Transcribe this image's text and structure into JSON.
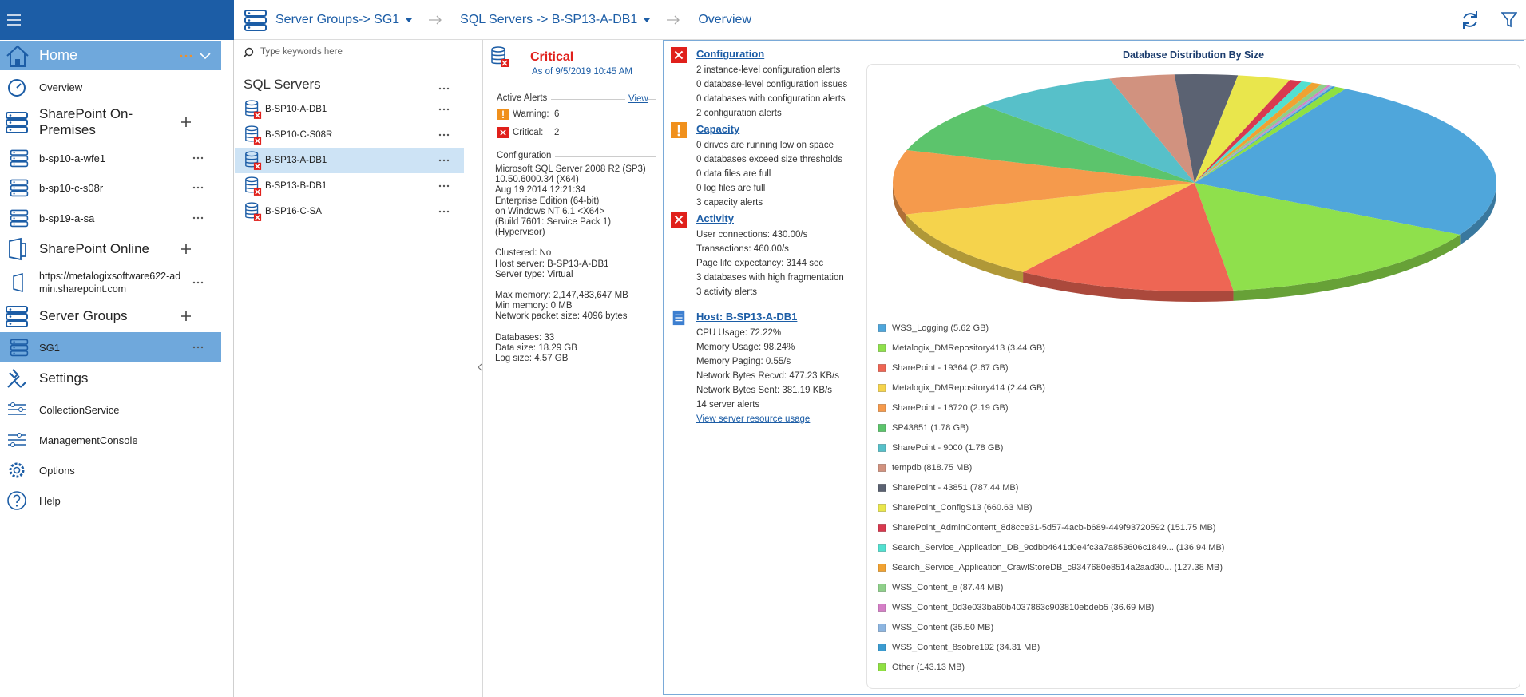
{
  "top_bar": {
    "breadcrumb": [
      "Server Groups-> SG1",
      "SQL Servers -> B-SP13-A-DB1",
      "Overview"
    ]
  },
  "sidebar": {
    "home": "Home",
    "items": [
      "Overview",
      "SharePoint On-Premises",
      "b-sp10-a-wfe1",
      "b-sp10-c-s08r",
      "b-sp19-a-sa",
      "SharePoint Online",
      "https://metalogixsoftware622-admin.sharepoint.com",
      "Server Groups",
      "SG1",
      "Settings",
      "CollectionService",
      "ManagementConsole",
      "Options",
      "Help"
    ]
  },
  "servers": {
    "search_placeholder": "Type keywords here",
    "title": "SQL Servers",
    "items": [
      "B-SP10-A-DB1",
      "B-SP10-C-S08R",
      "B-SP13-A-DB1",
      "B-SP13-B-DB1",
      "B-SP16-C-SA"
    ]
  },
  "status": {
    "state": "Critical",
    "as_of": "As of 9/5/2019 10:45 AM",
    "alerts_title": "Active Alerts",
    "view_link": "View",
    "warning_label": "Warning:",
    "warning_count": 6,
    "critical_label": "Critical:",
    "critical_count": 2,
    "configuration_title": "Configuration",
    "configuration_groups": [
      [
        "Microsoft SQL Server 2008 R2 (SP3)",
        "10.50.6000.34  (X64)",
        "Aug 19 2014 12:21:34",
        "Enterprise Edition (64-bit)",
        "on Windows NT 6.1 <X64>",
        "(Build 7601: Service Pack 1)",
        "(Hypervisor)"
      ],
      [
        "Clustered: No",
        "Host server: B-SP13-A-DB1",
        "Server type: Virtual"
      ],
      [
        "Max memory: 2,147,483,647  MB",
        "Min memory: 0 MB",
        "Network packet size: 4096 bytes"
      ],
      [
        "Databases: 33",
        "Data size: 18.29 GB",
        "Log size: 4.57 GB"
      ]
    ]
  },
  "checks": [
    {
      "title": "Configuration",
      "lines": [
        "2 instance-level configuration alerts",
        "0 database-level configuration issues",
        "0 databases with configuration alerts",
        "2 configuration alerts"
      ]
    },
    {
      "title": "Capacity",
      "lines": [
        "0 drives are running low on space",
        "0 databases exceed size thresholds",
        "0 data files are full",
        "0 log files are full",
        "3 capacity alerts"
      ]
    },
    {
      "title": "Activity",
      "lines": [
        "User connections: 430.00/s",
        "Transactions: 460.00/s",
        "Page life expectancy: 3144 sec",
        "3 databases with high fragmentation",
        "3 activity alerts"
      ]
    }
  ],
  "host": {
    "title": "Host: B-SP13-A-DB1",
    "lines": [
      "CPU Usage: 72.22%",
      "Memory Usage: 98.24%",
      "Memory Paging: 0.55/s",
      "Network Bytes Recvd: 477.23 KB/s",
      "Network Bytes Sent: 381.19 KB/s",
      "14 server alerts"
    ],
    "link": "View server resource usage"
  },
  "chart_data": {
    "type": "pie",
    "title": "Database Distribution By Size",
    "categories": [
      "WSS_Logging (5.62 GB)",
      "Metalogix_DMRepository413 (3.44 GB)",
      "SharePoint - 19364 (2.67 GB)",
      "Metalogix_DMRepository414 (2.44 GB)",
      "SharePoint - 16720 (2.19 GB)",
      "SP43851 (1.78 GB)",
      "SharePoint - 9000 (1.78 GB)",
      "tempdb (818.75 MB)",
      "SharePoint - 43851 (787.44 MB)",
      "SharePoint_ConfigS13 (660.63 MB)",
      "SharePoint_AdminContent_8d8cce31-5d57-4acb-b689-449f93720592  (151.75  MB)",
      "Search_Service_Application_DB_9cdbb4641d0e4fc3a7a853606c1849... (136.94  MB)",
      "Search_Service_Application_CrawlStoreDB_c9347680e8514a2aad30... (127.38  MB)",
      "WSS_Content_e (87.44 MB)",
      "WSS_Content_0d3e033ba60b4037863c903810ebdeb5  (36.69  MB)",
      "WSS_Content (35.50 MB)",
      "WSS_Content_8sobre192 (34.31 MB)",
      "Other (143.13 MB)"
    ],
    "values": [
      5754.88,
      3522.56,
      2734.08,
      2498.56,
      2242.56,
      1822.72,
      1822.72,
      818.75,
      787.44,
      660.63,
      151.75,
      136.94,
      127.38,
      87.44,
      36.69,
      35.5,
      34.31,
      143.13
    ],
    "colors": [
      "#4fa6db",
      "#8fe04c",
      "#ee6654",
      "#f5d34c",
      "#f59a4c",
      "#5cc46c",
      "#57c0c9",
      "#d1927f",
      "#5b6272",
      "#e9e64c",
      "#d8394f",
      "#52e0d0",
      "#f0a232",
      "#8fcf8a",
      "#d47fc6",
      "#8db5e0",
      "#3b9bd0",
      "#8fe042"
    ]
  }
}
